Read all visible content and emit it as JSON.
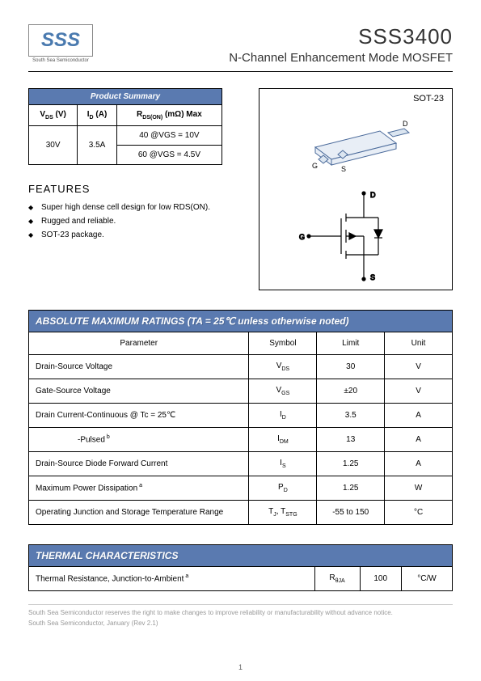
{
  "header": {
    "company": "South Sea Semiconductor",
    "logo_text": "SSS",
    "part_number": "SSS3400",
    "subtitle": "N-Channel Enhancement Mode MOSFET",
    "logo_color": "#4a7aaf"
  },
  "summary": {
    "title": "Product Summary",
    "columns": [
      "VDS (V)",
      "ID (A)",
      "RDS(ON) (mΩ) Max"
    ],
    "vds": "30V",
    "id": "3.5A",
    "rds_rows": [
      "40 @VGS = 10V",
      "60 @VGS = 4.5V"
    ]
  },
  "package": {
    "label": "SOT-23",
    "pins": {
      "g": "G",
      "s": "S",
      "d": "D"
    }
  },
  "features": {
    "title": "FEATURES",
    "items": [
      "Super high dense cell design for low RDS(ON).",
      "Rugged and reliable.",
      "SOT-23 package."
    ]
  },
  "ratings": {
    "title": "ABSOLUTE MAXIMUM RATINGS (TA = 25℃ unless otherwise noted)",
    "columns": [
      "Parameter",
      "Symbol",
      "Limit",
      "Unit"
    ],
    "rows": [
      {
        "param": "Drain-Source Voltage",
        "symbol_html": "V<sub>DS</sub>",
        "limit": "30",
        "unit": "V"
      },
      {
        "param": "Gate-Source Voltage",
        "symbol_html": "V<sub>GS</sub>",
        "limit": "±20",
        "unit": "V"
      },
      {
        "param": "Drain Current-Continuous @ Tc = 25℃",
        "symbol_html": "I<sub>D</sub>",
        "limit": "3.5",
        "unit": "A"
      },
      {
        "param": "-Pulsed",
        "param_sup": "b",
        "param_indent": true,
        "symbol_html": "I<sub>DM</sub>",
        "limit": "13",
        "unit": "A"
      },
      {
        "param": "Drain-Source Diode Forward Current",
        "symbol_html": "I<sub>S</sub>",
        "limit": "1.25",
        "unit": "A"
      },
      {
        "param": "Maximum Power Dissipation",
        "param_sup": "a",
        "symbol_html": "P<sub>D</sub>",
        "limit": "1.25",
        "unit": "W"
      },
      {
        "param": "Operating Junction and Storage Temperature Range",
        "symbol_html": "T<sub>J</sub>, T<sub>STG</sub>",
        "limit": "-55 to 150",
        "unit": "°C"
      }
    ]
  },
  "thermal": {
    "title": "THERMAL CHARACTERISTICS",
    "rows": [
      {
        "param": "Thermal Resistance, Junction-to-Ambient",
        "param_sup": "a",
        "symbol_html": "R<sub>θJA</sub>",
        "limit": "100",
        "unit": "°C/W"
      }
    ]
  },
  "footer": {
    "line1": "South Sea Semiconductor reserves the right to make changes to improve reliability or manufacturability without advance notice.",
    "line2": "South Sea Semiconductor, January (Rev 2.1)",
    "page": "1"
  },
  "colors": {
    "bar_bg": "#5a7ab0",
    "bar_fg": "#ffffff",
    "border": "#000000",
    "footnote": "#999999"
  }
}
